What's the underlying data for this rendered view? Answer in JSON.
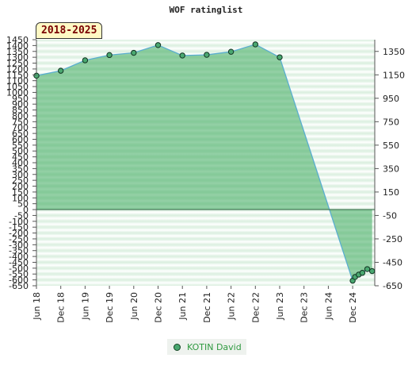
{
  "chart_data": {
    "type": "area",
    "title": "WOF ratinglist",
    "badge": "2018-2025",
    "categories": [
      "Jun 18",
      "Dec 18",
      "Jun 19",
      "Dec 19",
      "Jun 20",
      "Dec 20",
      "Jun 21",
      "Dec 21",
      "Jun 22",
      "Dec 22",
      "Jun 23",
      "Dec 23",
      "Jun 24",
      "Dec 24"
    ],
    "series": [
      {
        "name": "KOTIN David",
        "x": [
          0,
          1,
          2,
          3,
          4,
          5,
          6,
          7,
          8,
          9,
          10,
          13.0,
          13.1,
          13.25,
          13.4,
          13.6,
          13.8
        ],
        "values": [
          1143,
          1185,
          1274,
          1319,
          1338,
          1404,
          1315,
          1321,
          1347,
          1410,
          1300,
          -607,
          -575,
          -555,
          -540,
          -508,
          -525
        ]
      }
    ],
    "ylim": [
      -650,
      1450
    ],
    "y_ticks_left": [
      1450,
      1400,
      1350,
      1300,
      1250,
      1200,
      1150,
      1100,
      1050,
      1000,
      950,
      900,
      850,
      800,
      750,
      700,
      650,
      600,
      550,
      500,
      450,
      400,
      350,
      300,
      250,
      200,
      150,
      100,
      50,
      0,
      -50,
      -100,
      -150,
      -200,
      -250,
      -300,
      -350,
      -400,
      -450,
      -500,
      -550,
      -600,
      -650
    ],
    "y_ticks_right": [
      1350,
      1150,
      950,
      750,
      550,
      350,
      150,
      -50,
      -250,
      -450,
      -650
    ],
    "grid": true,
    "legend_position": "bottom-center",
    "colors": {
      "fill": "#3caa5c",
      "line": "#5aaecf",
      "marker": "#4aa870",
      "legend_text": "#2f9a40",
      "badge_text": "#7a0000",
      "badge_bg": "#fff9c4"
    }
  }
}
